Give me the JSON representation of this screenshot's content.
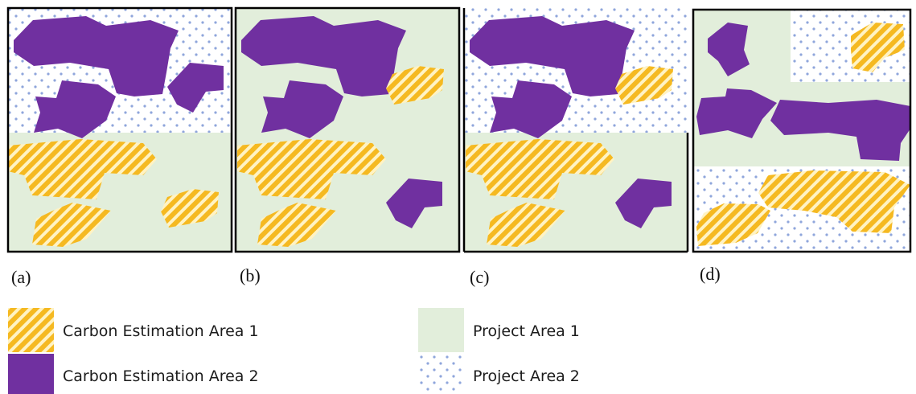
{
  "colors": {
    "purple": "#7030a0",
    "green": "#e2eedb",
    "yellow": "#f5b921",
    "dot": "#8fa6dc",
    "border": "#000000"
  },
  "panels": [
    {
      "label": "(a)"
    },
    {
      "label": "(b)"
    },
    {
      "label": "(c)"
    },
    {
      "label": "(d)"
    }
  ],
  "legend": [
    {
      "label": "Carbon Estimation Area 1",
      "pattern": "yellow-stripes"
    },
    {
      "label": "Carbon Estimation Area 2",
      "pattern": "purple-solid"
    },
    {
      "label": "Project Area 1",
      "pattern": "green-solid"
    },
    {
      "label": "Project Area 2",
      "pattern": "blue-dots"
    }
  ]
}
